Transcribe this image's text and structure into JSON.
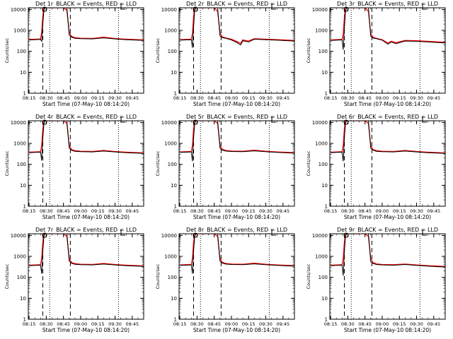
{
  "chart_data": {
    "type": "line",
    "xlabel": "Start Time (07-May-10 08:14:20)",
    "ylabel": "Counts/sec",
    "yscale": "log",
    "ylim": [
      1,
      12000
    ],
    "xlim": [
      "08:14:20",
      "09:55:00"
    ],
    "y_ticks": [
      "1",
      "10",
      "100",
      "1000",
      "10000"
    ],
    "x_ticks": [
      "08:15",
      "08:30",
      "08:45",
      "09:00",
      "09:15",
      "09:30",
      "09:45"
    ],
    "legend_text": "BLACK = Events, RED = LLD",
    "series_colors": {
      "events": "#000000",
      "lld": "#ff0000"
    },
    "markers": {
      "dashed": [
        "08:27",
        "08:51"
      ],
      "dotted": [
        "08:33",
        "09:33"
      ]
    },
    "panels": [
      {
        "title": "Det 1r",
        "time": [
          "08:15",
          "08:20",
          "08:25",
          "08:26",
          "08:27",
          "08:28",
          "08:29",
          "08:30",
          "08:32",
          "08:35",
          "08:40",
          "08:45",
          "08:48",
          "08:50",
          "08:52",
          "08:55",
          "09:00",
          "09:10",
          "09:20",
          "09:30",
          "09:40",
          "09:50",
          "09:55"
        ],
        "events": [
          350,
          360,
          370,
          300,
          2000,
          9000,
          12000,
          12000,
          12000,
          12000,
          12000,
          12000,
          12000,
          600,
          480,
          420,
          400,
          390,
          440,
          390,
          360,
          340,
          330
        ],
        "lld": [
          370,
          380,
          390,
          800,
          5000,
          12000,
          12000,
          12000,
          12000,
          12000,
          12000,
          12000,
          9000,
          800,
          520,
          450,
          420,
          410,
          470,
          410,
          380,
          360,
          350
        ]
      },
      {
        "title": "Det 2r",
        "time": [
          "08:15",
          "08:20",
          "08:25",
          "08:26",
          "08:27",
          "08:28",
          "08:29",
          "08:30",
          "08:32",
          "08:35",
          "08:40",
          "08:45",
          "08:48",
          "08:50",
          "08:52",
          "08:55",
          "09:00",
          "09:05",
          "09:08",
          "09:10",
          "09:15",
          "09:20",
          "09:30",
          "09:40",
          "09:50",
          "09:55"
        ],
        "events": [
          340,
          350,
          360,
          150,
          1500,
          9000,
          12000,
          12000,
          12000,
          12000,
          12000,
          12000,
          12000,
          550,
          450,
          420,
          350,
          260,
          200,
          320,
          280,
          380,
          360,
          340,
          320,
          310
        ],
        "lld": [
          360,
          370,
          380,
          700,
          4500,
          12000,
          12000,
          12000,
          12000,
          12000,
          12000,
          12000,
          8000,
          750,
          490,
          440,
          380,
          290,
          240,
          350,
          310,
          400,
          380,
          360,
          340,
          330
        ]
      },
      {
        "title": "Det 3r",
        "time": [
          "08:15",
          "08:20",
          "08:25",
          "08:26",
          "08:27",
          "08:28",
          "08:29",
          "08:30",
          "08:32",
          "08:35",
          "08:40",
          "08:45",
          "08:48",
          "08:50",
          "08:52",
          "08:55",
          "09:00",
          "09:05",
          "09:08",
          "09:12",
          "09:20",
          "09:30",
          "09:40",
          "09:50",
          "09:55"
        ],
        "events": [
          330,
          340,
          350,
          120,
          1200,
          8000,
          12000,
          12000,
          12000,
          12000,
          12000,
          12000,
          12000,
          520,
          430,
          400,
          340,
          220,
          280,
          230,
          310,
          300,
          280,
          260,
          250
        ],
        "lld": [
          350,
          360,
          370,
          650,
          4000,
          12000,
          12000,
          12000,
          12000,
          12000,
          12000,
          12000,
          8000,
          700,
          470,
          420,
          360,
          250,
          300,
          260,
          330,
          320,
          300,
          280,
          270
        ]
      },
      {
        "title": "Det 4r",
        "time": [
          "08:15",
          "08:20",
          "08:25",
          "08:26",
          "08:27",
          "08:28",
          "08:29",
          "08:30",
          "08:32",
          "08:35",
          "08:40",
          "08:45",
          "08:48",
          "08:50",
          "08:52",
          "08:55",
          "09:00",
          "09:10",
          "09:20",
          "09:30",
          "09:40",
          "09:50",
          "09:55"
        ],
        "events": [
          360,
          370,
          380,
          150,
          1800,
          9000,
          12000,
          12000,
          12000,
          12000,
          12000,
          12000,
          12000,
          600,
          470,
          420,
          400,
          390,
          430,
          390,
          360,
          340,
          330
        ],
        "lld": [
          380,
          390,
          400,
          800,
          5000,
          12000,
          12000,
          12000,
          12000,
          12000,
          12000,
          12000,
          9000,
          800,
          510,
          450,
          420,
          410,
          460,
          410,
          380,
          360,
          350
        ]
      },
      {
        "title": "Det 5r",
        "time": [
          "08:15",
          "08:20",
          "08:25",
          "08:26",
          "08:27",
          "08:28",
          "08:29",
          "08:30",
          "08:32",
          "08:35",
          "08:40",
          "08:45",
          "08:48",
          "08:50",
          "08:52",
          "08:55",
          "09:00",
          "09:10",
          "09:20",
          "09:30",
          "09:40",
          "09:50",
          "09:55"
        ],
        "events": [
          370,
          380,
          390,
          140,
          1800,
          9000,
          12000,
          12000,
          12000,
          12000,
          12000,
          12000,
          12000,
          600,
          480,
          430,
          410,
          400,
          440,
          400,
          370,
          350,
          340
        ],
        "lld": [
          390,
          400,
          410,
          800,
          5000,
          12000,
          12000,
          12000,
          12000,
          12000,
          12000,
          12000,
          9000,
          800,
          520,
          460,
          430,
          420,
          470,
          420,
          390,
          370,
          360
        ]
      },
      {
        "title": "Det 6r",
        "time": [
          "08:15",
          "08:20",
          "08:25",
          "08:26",
          "08:27",
          "08:28",
          "08:29",
          "08:30",
          "08:32",
          "08:35",
          "08:40",
          "08:45",
          "08:48",
          "08:50",
          "08:52",
          "08:55",
          "09:00",
          "09:10",
          "09:20",
          "09:30",
          "09:40",
          "09:50",
          "09:55"
        ],
        "events": [
          360,
          370,
          380,
          140,
          1700,
          9000,
          12000,
          12000,
          12000,
          12000,
          12000,
          12000,
          12000,
          580,
          470,
          420,
          400,
          390,
          430,
          390,
          360,
          340,
          330
        ],
        "lld": [
          380,
          390,
          400,
          800,
          5000,
          12000,
          12000,
          12000,
          12000,
          12000,
          12000,
          12000,
          9000,
          780,
          510,
          450,
          420,
          410,
          460,
          410,
          380,
          360,
          350
        ]
      },
      {
        "title": "Det 7r",
        "time": [
          "08:15",
          "08:20",
          "08:25",
          "08:26",
          "08:27",
          "08:28",
          "08:29",
          "08:30",
          "08:32",
          "08:35",
          "08:40",
          "08:45",
          "08:48",
          "08:50",
          "08:52",
          "08:55",
          "09:00",
          "09:10",
          "09:20",
          "09:30",
          "09:40",
          "09:50",
          "09:55"
        ],
        "events": [
          360,
          370,
          380,
          150,
          1800,
          9000,
          12000,
          12000,
          12000,
          12000,
          12000,
          12000,
          12000,
          600,
          470,
          420,
          400,
          390,
          430,
          390,
          360,
          340,
          330
        ],
        "lld": [
          380,
          390,
          400,
          800,
          5000,
          12000,
          12000,
          12000,
          12000,
          12000,
          12000,
          12000,
          9000,
          800,
          510,
          450,
          420,
          410,
          460,
          410,
          380,
          360,
          350
        ]
      },
      {
        "title": "Det 8r",
        "time": [
          "08:15",
          "08:20",
          "08:25",
          "08:26",
          "08:27",
          "08:28",
          "08:29",
          "08:30",
          "08:32",
          "08:35",
          "08:40",
          "08:45",
          "08:48",
          "08:50",
          "08:52",
          "08:55",
          "09:00",
          "09:10",
          "09:20",
          "09:30",
          "09:40",
          "09:50",
          "09:55"
        ],
        "events": [
          370,
          380,
          390,
          150,
          1800,
          9000,
          12000,
          12000,
          12000,
          12000,
          12000,
          12000,
          12000,
          600,
          480,
          430,
          410,
          400,
          440,
          400,
          370,
          350,
          340
        ],
        "lld": [
          390,
          400,
          410,
          800,
          5000,
          12000,
          12000,
          12000,
          12000,
          12000,
          12000,
          12000,
          9000,
          800,
          520,
          460,
          430,
          420,
          470,
          420,
          390,
          370,
          360
        ]
      },
      {
        "title": "Det 9r",
        "time": [
          "08:15",
          "08:20",
          "08:25",
          "08:26",
          "08:27",
          "08:28",
          "08:29",
          "08:30",
          "08:32",
          "08:35",
          "08:40",
          "08:45",
          "08:48",
          "08:50",
          "08:52",
          "08:55",
          "09:00",
          "09:10",
          "09:20",
          "09:30",
          "09:40",
          "09:50",
          "09:55"
        ],
        "events": [
          360,
          370,
          380,
          120,
          1600,
          9000,
          12000,
          12000,
          12000,
          12000,
          12000,
          12000,
          12000,
          560,
          460,
          410,
          390,
          380,
          410,
          370,
          340,
          320,
          310
        ],
        "lld": [
          380,
          390,
          400,
          780,
          4800,
          12000,
          12000,
          12000,
          12000,
          12000,
          12000,
          12000,
          9000,
          760,
          500,
          440,
          410,
          400,
          430,
          390,
          360,
          340,
          330
        ]
      }
    ]
  }
}
